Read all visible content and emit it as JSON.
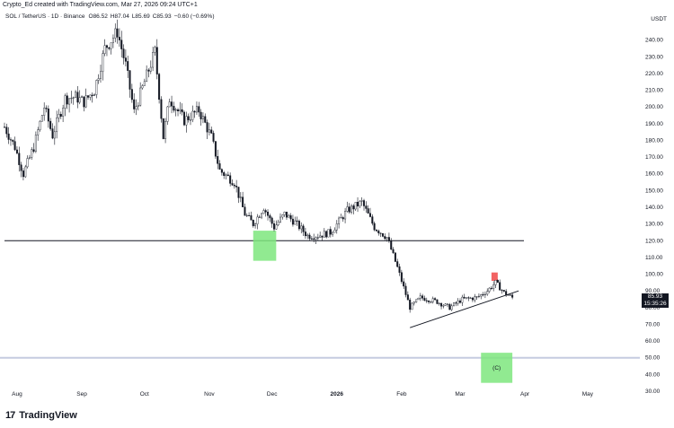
{
  "header": {
    "credit": "Crypto_Ed created with TradingView.com, Mar 27, 2026 09:24 UTC+1"
  },
  "symbol": {
    "name": "SOL / TetherUS · 1D · Binance",
    "open": "O86.52",
    "high": "H87.04",
    "low": "L85.69",
    "close": "C85.93",
    "change": "−0.60 (−0.69%)"
  },
  "price_axis": {
    "currency": "USDT",
    "last_price": "85.93",
    "countdown": "15:35:26"
  },
  "footer": {
    "brand": "TradingView",
    "brand_mark": "17"
  },
  "colors": {
    "candle": "#131722",
    "support_box": "#7ee67e",
    "resistance_box": "#f04848",
    "target_line": "#c6cce0",
    "grid": "#eef0f4"
  },
  "chart_data": {
    "type": "candlestick",
    "title": "SOL / TetherUS · 1D · Binance",
    "xlabel": "",
    "ylabel": "USDT",
    "ylim": [
      30,
      250
    ],
    "grid": false,
    "x_ticks": [
      "Aug",
      "Sep",
      "Oct",
      "Nov",
      "Dec",
      "2026",
      "Feb",
      "Mar",
      "Apr",
      "May"
    ],
    "y_ticks": [
      30,
      40,
      50,
      60,
      70,
      80,
      90,
      100,
      110,
      120,
      130,
      140,
      150,
      160,
      170,
      180,
      190,
      200,
      210,
      220,
      230,
      240
    ],
    "price_path": [
      {
        "date": "2025-07-26",
        "price": 188
      },
      {
        "date": "2025-07-31",
        "price": 176
      },
      {
        "date": "2025-08-04",
        "price": 160
      },
      {
        "date": "2025-08-09",
        "price": 176
      },
      {
        "date": "2025-08-14",
        "price": 200
      },
      {
        "date": "2025-08-18",
        "price": 183
      },
      {
        "date": "2025-08-24",
        "price": 205
      },
      {
        "date": "2025-08-29",
        "price": 206
      },
      {
        "date": "2025-09-02",
        "price": 203
      },
      {
        "date": "2025-09-07",
        "price": 210
      },
      {
        "date": "2025-09-12",
        "price": 235
      },
      {
        "date": "2025-09-18",
        "price": 245
      },
      {
        "date": "2025-09-22",
        "price": 225
      },
      {
        "date": "2025-09-26",
        "price": 197
      },
      {
        "date": "2025-10-01",
        "price": 215
      },
      {
        "date": "2025-10-06",
        "price": 233
      },
      {
        "date": "2025-10-10",
        "price": 182
      },
      {
        "date": "2025-10-13",
        "price": 205
      },
      {
        "date": "2025-10-20",
        "price": 192
      },
      {
        "date": "2025-10-27",
        "price": 198
      },
      {
        "date": "2025-11-02",
        "price": 182
      },
      {
        "date": "2025-11-06",
        "price": 162
      },
      {
        "date": "2025-11-13",
        "price": 155
      },
      {
        "date": "2025-11-18",
        "price": 136
      },
      {
        "date": "2025-11-22",
        "price": 130
      },
      {
        "date": "2025-11-27",
        "price": 140
      },
      {
        "date": "2025-12-02",
        "price": 128
      },
      {
        "date": "2025-12-07",
        "price": 136
      },
      {
        "date": "2025-12-12",
        "price": 131
      },
      {
        "date": "2025-12-18",
        "price": 123
      },
      {
        "date": "2025-12-23",
        "price": 123
      },
      {
        "date": "2025-12-29",
        "price": 125
      },
      {
        "date": "2026-01-06",
        "price": 138
      },
      {
        "date": "2026-01-13",
        "price": 143
      },
      {
        "date": "2026-01-19",
        "price": 128
      },
      {
        "date": "2026-01-25",
        "price": 122
      },
      {
        "date": "2026-01-30",
        "price": 104
      },
      {
        "date": "2026-02-05",
        "price": 80
      },
      {
        "date": "2026-02-10",
        "price": 86
      },
      {
        "date": "2026-02-17",
        "price": 84
      },
      {
        "date": "2026-02-24",
        "price": 80
      },
      {
        "date": "2026-03-02",
        "price": 85
      },
      {
        "date": "2026-03-09",
        "price": 86
      },
      {
        "date": "2026-03-14",
        "price": 90
      },
      {
        "date": "2026-03-18",
        "price": 95
      },
      {
        "date": "2026-03-22",
        "price": 89
      },
      {
        "date": "2026-03-26",
        "price": 86
      }
    ],
    "annotations": [
      {
        "type": "horizontal_line",
        "price": 120
      },
      {
        "type": "horizontal_line",
        "price": 50
      },
      {
        "type": "zone",
        "from_date": "2025-11-22",
        "to_date": "2025-12-03",
        "low": 108,
        "high": 126
      },
      {
        "type": "zone",
        "from_date": "2026-03-16",
        "to_date": "2026-03-19",
        "low": 96,
        "high": 101
      },
      {
        "type": "zone",
        "from_date": "2026-03-11",
        "to_date": "2026-03-26",
        "low": 35,
        "high": 53,
        "label": "(C)"
      },
      {
        "type": "trendline",
        "from": {
          "date": "2026-02-05",
          "price": 68
        },
        "to": {
          "date": "2026-03-29",
          "price": 90
        }
      }
    ]
  }
}
